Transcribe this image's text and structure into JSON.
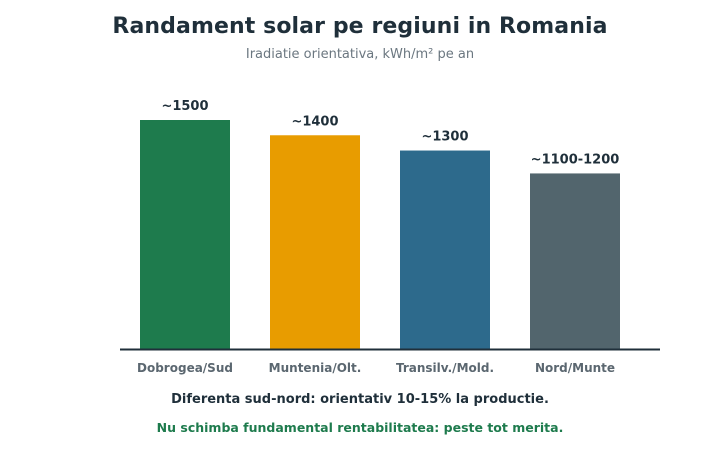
{
  "chart_data": {
    "type": "bar",
    "title": "Randament solar pe regiuni in Romania",
    "subtitle": "Iradiatie orientativa, kWh/m² pe an",
    "xlabel": "",
    "ylabel": "",
    "categories": [
      "Dobrogea/Sud",
      "Muntenia/Olt.",
      "Transilv./Mold.",
      "Nord/Munte"
    ],
    "values": [
      1500,
      1400,
      1300,
      1150
    ],
    "data_labels": [
      "~1500",
      "~1400",
      "~1300",
      "~1100-1200"
    ],
    "colors": [
      "#1e7b4d",
      "#e89c00",
      "#2d6a8c",
      "#52656d"
    ],
    "ylim": [
      0,
      1500
    ],
    "grid": false,
    "legend": "none"
  },
  "notes": {
    "line1": "Diferenta sud-nord: orientativ 10-15% la productie.",
    "line2": "Nu schimba fundamental rentabilitatea: peste tot merita."
  }
}
